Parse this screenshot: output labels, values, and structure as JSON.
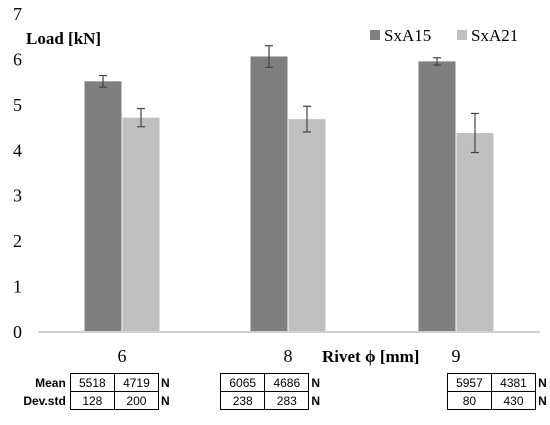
{
  "chart_data": {
    "type": "bar",
    "title": "",
    "ylabel": "Load [kN]",
    "xlabel": "Rivet ϕ [mm]",
    "ylim": [
      0,
      7
    ],
    "yticks": [
      0,
      1,
      2,
      3,
      4,
      5,
      6,
      7
    ],
    "categories": [
      "6",
      "8",
      "9"
    ],
    "series": [
      {
        "name": "SxA15",
        "color": "#7f7f7f",
        "values": [
          5.518,
          6.065,
          5.957
        ],
        "errors": [
          0.128,
          0.238,
          0.08
        ]
      },
      {
        "name": "SxA21",
        "color": "#c0c0c0",
        "values": [
          4.719,
          4.686,
          4.381
        ],
        "errors": [
          0.2,
          0.283,
          0.43
        ]
      }
    ],
    "legend_position": "top-right",
    "grid": false,
    "error_bars": true
  },
  "stats_table": {
    "row_labels": [
      "Mean",
      "Dev.std"
    ],
    "unit": "N",
    "groups": [
      {
        "category": "6",
        "mean": [
          "5518",
          "4719"
        ],
        "dev": [
          "128",
          "200"
        ]
      },
      {
        "category": "8",
        "mean": [
          "6065",
          "4686"
        ],
        "dev": [
          "238",
          "283"
        ]
      },
      {
        "category": "9",
        "mean": [
          "5957",
          "4381"
        ],
        "dev": [
          "80",
          "430"
        ]
      }
    ]
  }
}
